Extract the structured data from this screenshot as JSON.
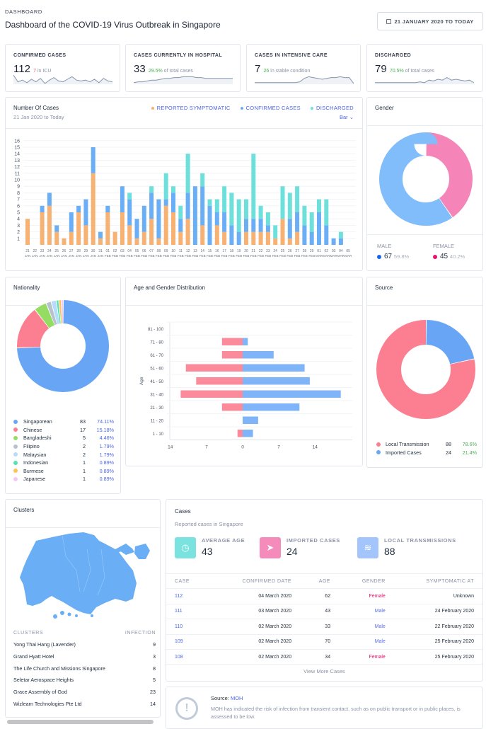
{
  "header": {
    "eyebrow": "DASHBOARD",
    "title": "Dashboard of the COVID-19 Virus Outbreak in Singapore",
    "date_range": "21 JANUARY 2020 TO TODAY",
    "calendar_icon": "calendar-icon"
  },
  "stats": [
    {
      "label": "CONFIRMED CASES",
      "value": "112",
      "note_value": "7",
      "note_text": "in ICU"
    },
    {
      "label": "CASES CURRENTLY IN HOSPITAL",
      "value": "33",
      "note_value": "29.5%",
      "note_text": "of total cases"
    },
    {
      "label": "CASES IN INTENSIVE CARE",
      "value": "7",
      "note_value": "26",
      "note_text": "in stable condition"
    },
    {
      "label": "DISCHARGED",
      "value": "79",
      "note_value": "70.5%",
      "note_text": "of total cases"
    }
  ],
  "cases_chart": {
    "title": "Number Of Cases",
    "subtitle": "21 Jan 2020 to Today",
    "chart_type_select": "Bar"
  },
  "gender": {
    "title": "Gender",
    "male_label": "MALE",
    "male_count": "67",
    "male_pct": "59.8%",
    "female_label": "FEMALE",
    "female_count": "45",
    "female_pct": "40.2%"
  },
  "nationality": {
    "title": "Nationality"
  },
  "age_gender": {
    "title": "Age and Gender Distribution"
  },
  "source": {
    "title": "Source"
  },
  "chart_data": [
    {
      "type": "bar",
      "stacked": true,
      "title": "Number Of Cases",
      "ylim": [
        0,
        16
      ],
      "grid": true,
      "legend": "top-right",
      "categories": [
        "21 JAN",
        "22 JAN",
        "23 JAN",
        "24 JAN",
        "25 JAN",
        "26 JAN",
        "27 JAN",
        "28 JAN",
        "29 JAN",
        "30 JAN",
        "31 JAN",
        "01 FEB",
        "02 FEB",
        "03 FEB",
        "04 FEB",
        "05 FEB",
        "06 FEB",
        "07 FEB",
        "08 FEB",
        "09 FEB",
        "10 FEB",
        "11 FEB",
        "12 FEB",
        "13 FEB",
        "14 FEB",
        "15 FEB",
        "16 FEB",
        "17 FEB",
        "18 FEB",
        "19 FEB",
        "20 FEB",
        "21 FEB",
        "22 FEB",
        "23 FEB",
        "24 FEB",
        "25 FEB",
        "26 FEB",
        "27 FEB",
        "28 FEB",
        "29 FEB",
        "01 MAR",
        "02 MAR",
        "03 MAR",
        "04 MAR",
        "05 MAR"
      ],
      "yticks": [
        "1",
        "2",
        "3",
        "4",
        "5",
        "6",
        "7",
        "8",
        "9",
        "10",
        "11",
        "12",
        "13",
        "14",
        "15",
        "16"
      ],
      "series": [
        {
          "name": "REPORTED SYMPTOMATIC",
          "color": "#f7b172",
          "values": [
            4,
            0,
            5,
            6,
            2,
            1,
            2,
            5,
            3,
            11,
            1,
            5,
            2,
            5,
            3,
            1,
            2,
            4,
            1,
            6,
            5,
            2,
            4,
            0,
            3,
            0,
            3,
            2,
            0,
            0,
            2,
            2,
            2,
            2,
            1,
            4,
            1,
            2,
            0,
            0,
            0,
            0,
            0,
            0,
            0
          ]
        },
        {
          "name": "CONFIRMED CASES",
          "color": "#6aaef5",
          "values": [
            0,
            0,
            1,
            2,
            1,
            0,
            3,
            1,
            4,
            4,
            1,
            1,
            0,
            4,
            4,
            3,
            4,
            4,
            6,
            1,
            3,
            2,
            4,
            9,
            6,
            6,
            2,
            3,
            3,
            2,
            2,
            2,
            2,
            1,
            0,
            0,
            3,
            3,
            3,
            2,
            5,
            3,
            1,
            1,
            0
          ]
        },
        {
          "name": "DISCHARGED",
          "color": "#6ee0dc",
          "values": [
            0,
            0,
            0,
            0,
            0,
            0,
            0,
            0,
            0,
            0,
            0,
            0,
            0,
            0,
            1,
            0,
            0,
            1,
            0,
            4,
            1,
            2,
            6,
            0,
            2,
            1,
            2,
            4,
            5,
            5,
            3,
            10,
            2,
            2,
            2,
            5,
            4,
            4,
            3,
            3,
            2,
            4,
            0,
            1,
            0
          ]
        }
      ]
    },
    {
      "type": "pie",
      "title": "Gender",
      "donut": true,
      "slices": [
        {
          "name": "FEMALE",
          "value": 45,
          "color": "#f584b8"
        },
        {
          "name": "MALE",
          "value": 67,
          "color": "#80bdfa"
        }
      ]
    },
    {
      "type": "pie",
      "title": "Nationality",
      "donut": true,
      "slices": [
        {
          "name": "Singaporean",
          "value": 83,
          "pct": "74.11%",
          "color": "#68a5f5"
        },
        {
          "name": "Chinese",
          "value": 17,
          "pct": "15.18%",
          "color": "#fb7f90"
        },
        {
          "name": "Bangladeshi",
          "value": 5,
          "pct": "4.46%",
          "color": "#94dc62"
        },
        {
          "name": "Filipino",
          "value": 2,
          "pct": "1.79%",
          "color": "#b8c2cc"
        },
        {
          "name": "Malaysian",
          "value": 2,
          "pct": "1.79%",
          "color": "#b6dcfb"
        },
        {
          "name": "Indonesian",
          "value": 1,
          "pct": "0.89%",
          "color": "#52e3b0"
        },
        {
          "name": "Burmese",
          "value": 1,
          "pct": "0.89%",
          "color": "#ffc15a"
        },
        {
          "name": "Japanese",
          "value": 1,
          "pct": "0.89%",
          "color": "#f6c6fa"
        }
      ]
    },
    {
      "type": "bar",
      "orientation": "horizontal",
      "title": "Age and Gender Distribution",
      "ylabel": "Age",
      "xticks": [
        "14",
        "7",
        "0",
        "7",
        "14"
      ],
      "xlim": [
        -19,
        19
      ],
      "categories": [
        "81 - 100",
        "71 - 80",
        "61 - 70",
        "51 - 60",
        "41 - 50",
        "31 - 40",
        "21 - 30",
        "11 - 20",
        "1 - 10"
      ],
      "series": [
        {
          "color": "#fb8a9b",
          "values": [
            0,
            4,
            4,
            11,
            9,
            12,
            4,
            0,
            1
          ]
        },
        {
          "color": "#80b4f8",
          "values": [
            0,
            1,
            6,
            12,
            13,
            19,
            11,
            3,
            2
          ]
        }
      ]
    },
    {
      "type": "pie",
      "title": "Source",
      "donut": true,
      "slices": [
        {
          "name": "Imported Cases",
          "value": 24,
          "pct": "21.4%",
          "color": "#68a5f5"
        },
        {
          "name": "Local Transmission",
          "value": 88,
          "pct": "78.6%",
          "color": "#fb7f90"
        }
      ]
    }
  ],
  "clusters": {
    "title": "Clusters",
    "col_name": "CLUSTERS",
    "col_count": "INFECTION",
    "map_color": "#6aaef5",
    "rows": [
      {
        "name": "Yong Thai Hang (Lavender)",
        "count": "9"
      },
      {
        "name": "Grand Hyatt Hotel",
        "count": "3"
      },
      {
        "name": "The Life Church and Missions Singapore",
        "count": "8"
      },
      {
        "name": "Seletar Aerospace Heights",
        "count": "5"
      },
      {
        "name": "Grace Assembly of God",
        "count": "23"
      },
      {
        "name": "Wizlearn Technologies Pte Ltd",
        "count": "14"
      }
    ]
  },
  "cases": {
    "title": "Cases",
    "subtitle": "Reported cases in Singapore",
    "kpis": [
      {
        "label": "AVERAGE AGE",
        "value": "43",
        "icon": "clock-icon",
        "color": "#7ae3df"
      },
      {
        "label": "IMPORTED CASES",
        "value": "24",
        "icon": "send-icon",
        "color": "#f58bbb"
      },
      {
        "label": "LOCAL TRANSMISSIONS",
        "value": "88",
        "icon": "wifi-icon",
        "color": "#a4c5fb"
      }
    ],
    "columns": [
      "CASE",
      "CONFIRMED DATE",
      "AGE",
      "GENDER",
      "SYMPTOMATIC AT"
    ],
    "rows": [
      [
        "112",
        "04 March 2020",
        "62",
        "Female",
        "Unknown"
      ],
      [
        "111",
        "03 March 2020",
        "43",
        "Male",
        "24 February 2020"
      ],
      [
        "110",
        "02 March 2020",
        "33",
        "Male",
        "22 February 2020"
      ],
      [
        "109",
        "02 March 2020",
        "70",
        "Male",
        "25 February 2020"
      ],
      [
        "108",
        "02 March 2020",
        "34",
        "Female",
        "25 February 2020"
      ]
    ],
    "view_more": "View More Cases"
  },
  "note": {
    "source_label": "Source:",
    "source_link": "MOH",
    "text": "MOH has indicated the risk of infection from transient contact, such as on public transport or in public places, is assessed to be low."
  }
}
